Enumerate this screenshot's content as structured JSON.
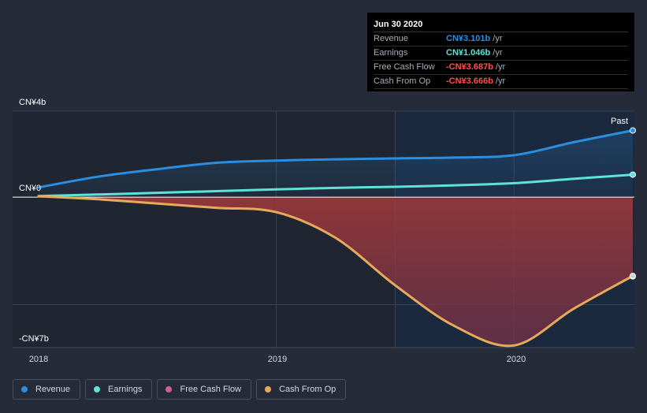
{
  "chart_data": {
    "type": "line",
    "title": "",
    "xlabel": "",
    "ylabel": "",
    "ylim": [
      -7,
      4
    ],
    "y_axis_labels": [
      "CN¥4b",
      "CN¥0",
      "-CN¥7b"
    ],
    "x_tick_labels": [
      "2018",
      "2019",
      "2020"
    ],
    "past_label": "Past",
    "unit": "CN¥b",
    "series": [
      {
        "name": "Revenue",
        "color": "#2b8ee0",
        "x": [
          2018.0,
          2018.25,
          2018.5,
          2018.75,
          2019.0,
          2019.25,
          2019.5,
          2019.75,
          2020.0,
          2020.25,
          2020.5
        ],
        "values": [
          0.45,
          0.95,
          1.3,
          1.6,
          1.7,
          1.76,
          1.8,
          1.84,
          1.95,
          2.55,
          3.101
        ]
      },
      {
        "name": "Earnings",
        "color": "#5de3d8",
        "x": [
          2018.0,
          2018.25,
          2018.5,
          2018.75,
          2019.0,
          2019.25,
          2019.5,
          2019.75,
          2020.0,
          2020.25,
          2020.5
        ],
        "values": [
          0.05,
          0.12,
          0.2,
          0.28,
          0.36,
          0.43,
          0.48,
          0.55,
          0.65,
          0.85,
          1.046
        ]
      },
      {
        "name": "Free Cash Flow",
        "color": "#d35f8f",
        "x": [
          2018.0,
          2018.25,
          2018.5,
          2018.75,
          2019.0,
          2019.25,
          2019.5,
          2019.75,
          2020.0,
          2020.25,
          2020.5
        ],
        "values": [
          0.05,
          -0.1,
          -0.3,
          -0.5,
          -0.7,
          -1.9,
          -4.1,
          -6.0,
          -6.9,
          -5.2,
          -3.687
        ]
      },
      {
        "name": "Cash From Op",
        "color": "#e8a95b",
        "x": [
          2018.0,
          2018.25,
          2018.5,
          2018.75,
          2019.0,
          2019.25,
          2019.5,
          2019.75,
          2020.0,
          2020.25,
          2020.5
        ],
        "values": [
          0.04,
          -0.1,
          -0.3,
          -0.5,
          -0.7,
          -1.9,
          -4.1,
          -6.0,
          -6.9,
          -5.2,
          -3.666
        ]
      }
    ],
    "tooltip": {
      "date": "Jun 30 2020",
      "rows": [
        {
          "label": "Revenue",
          "value": "CN¥3.101b",
          "unit": "/yr",
          "color": "#2b8ee0"
        },
        {
          "label": "Earnings",
          "value": "CN¥1.046b",
          "unit": "/yr",
          "color": "#5de3d8"
        },
        {
          "label": "Free Cash Flow",
          "value": "-CN¥3.687b",
          "unit": "/yr",
          "color": "#ff4d4d"
        },
        {
          "label": "Cash From Op",
          "value": "-CN¥3.666b",
          "unit": "/yr",
          "color": "#ff4d4d"
        }
      ]
    }
  },
  "legend": [
    {
      "label": "Revenue",
      "color": "#2b8ee0"
    },
    {
      "label": "Earnings",
      "color": "#5de3d8"
    },
    {
      "label": "Free Cash Flow",
      "color": "#d35f8f"
    },
    {
      "label": "Cash From Op",
      "color": "#e8a95b"
    }
  ]
}
